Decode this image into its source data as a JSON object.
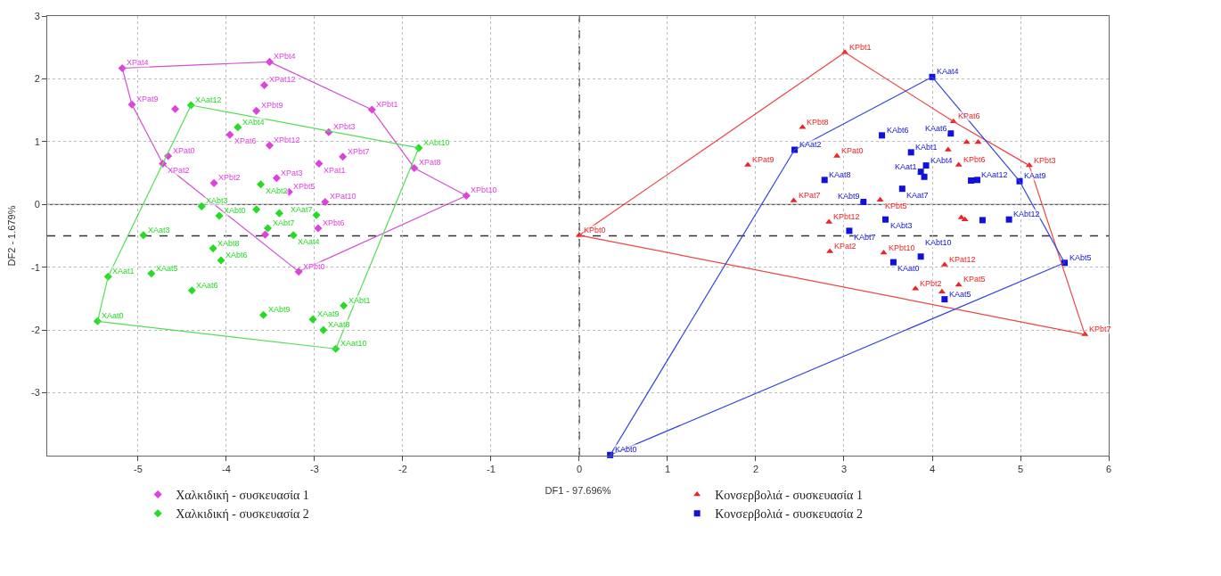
{
  "chart_data": {
    "type": "scatter",
    "xlabel": "DF1 - 97.696%",
    "ylabel": "DF2 - 1.679%",
    "xlim": [
      -6.03,
      6
    ],
    "ylim": [
      -4,
      3
    ],
    "xticks": [
      -5,
      -4,
      -3,
      -2,
      -1,
      0,
      1,
      2,
      3,
      4,
      5,
      6
    ],
    "yticks": [
      -3,
      -2,
      -1,
      0,
      1,
      2,
      3
    ],
    "grid": true,
    "legend": "bottom",
    "ref_lines": [
      {
        "axis": "y",
        "value": 0,
        "line_style": "solid",
        "color": "#555555"
      },
      {
        "axis": "x",
        "value": 0,
        "line_style": "dashed",
        "color": "#333333"
      },
      {
        "axis": "y",
        "value": -0.5,
        "line_style": "dashed",
        "color": "#333333"
      }
    ],
    "series": [
      {
        "name": "Χαλκιδική - συσκευασία 1",
        "color": "#e040e0",
        "marker": "diamond",
        "x": [
          -5.18,
          -5.07,
          -3.51,
          -3.57,
          -3.66,
          -2.35,
          -4.58,
          -3.96,
          -3.51,
          -2.84,
          -4.66,
          -4.72,
          -4.14,
          -3.43,
          -3.29,
          -2.95,
          -2.68,
          -1.87,
          -1.28,
          -2.88,
          -2.96,
          -3.18,
          -3.56
        ],
        "values": [
          2.17,
          1.59,
          2.27,
          1.9,
          1.49,
          1.51,
          1.52,
          1.11,
          0.94,
          1.15,
          0.77,
          0.65,
          0.34,
          0.42,
          0.2,
          0.65,
          0.76,
          0.58,
          0.14,
          0.04,
          -0.38,
          -1.07,
          -0.48
        ]
      },
      {
        "name": "Κονσερβολιά - συσκευασία 1",
        "color": "#ee2222",
        "marker": "triangle",
        "x": [
          3.01,
          2.53,
          2.92,
          1.91,
          2.43,
          0.0,
          2.83,
          2.84,
          3.45,
          4.14,
          3.81,
          4.11,
          4.3,
          5.73,
          5.1,
          4.24,
          4.3,
          3.41,
          4.18,
          4.39,
          4.52,
          4.33,
          4.37
        ],
        "values": [
          2.42,
          1.23,
          0.77,
          0.63,
          0.06,
          -0.49,
          -0.28,
          -0.75,
          -0.77,
          -0.96,
          -1.34,
          -1.39,
          -1.28,
          -2.07,
          0.62,
          1.32,
          0.63,
          0.07,
          0.87,
          0.99,
          0.99,
          -0.21,
          -0.24
        ]
      },
      {
        "name": "Χαλκιδική - συσκευασία 2",
        "color": "#22dd22",
        "marker": "diamond",
        "x": [
          -5.46,
          -5.34,
          -4.94,
          -4.85,
          -4.39,
          -4.15,
          -4.06,
          -3.58,
          -3.02,
          -2.67,
          -2.9,
          -2.76,
          -1.82,
          -4.4,
          -3.87,
          -3.61,
          -4.28,
          -4.08,
          -3.66,
          -3.4,
          -3.53,
          -3.24,
          -2.98
        ],
        "values": [
          -1.86,
          -1.15,
          -0.49,
          -1.1,
          -1.37,
          -0.7,
          -0.89,
          -1.76,
          -1.83,
          -1.61,
          -2.0,
          -2.3,
          0.9,
          1.58,
          1.23,
          0.32,
          -0.03,
          -0.18,
          -0.08,
          -0.14,
          -0.38,
          -0.49,
          -0.17
        ]
      },
      {
        "name": "Κονσερβολιά - συσκευασία 2",
        "color": "#1111dd",
        "marker": "square",
        "x": [
          4.0,
          2.44,
          3.43,
          4.21,
          3.76,
          3.93,
          3.87,
          3.91,
          2.78,
          3.66,
          3.22,
          3.47,
          3.06,
          4.99,
          4.44,
          4.51,
          4.57,
          4.87,
          5.5,
          0.35,
          3.56,
          3.87,
          4.14
        ],
        "values": [
          2.03,
          0.87,
          1.1,
          1.13,
          0.83,
          0.62,
          0.52,
          0.44,
          0.39,
          0.25,
          0.04,
          -0.24,
          -0.42,
          0.37,
          0.38,
          0.39,
          -0.25,
          -0.24,
          -0.93,
          -3.99,
          -0.92,
          -0.83,
          -1.51
        ]
      },
      {
        "type": "line",
        "color": "#d050d0",
        "x": [
          -5.18,
          -3.51
        ],
        "values": [
          2.17,
          2.27
        ]
      },
      {
        "type": "line",
        "color": "#d050d0",
        "x": [
          -3.51,
          -2.35
        ],
        "values": [
          2.27,
          1.51
        ]
      },
      {
        "type": "line",
        "color": "#d050d0",
        "x": [
          -2.35,
          -1.87
        ],
        "values": [
          1.51,
          0.58
        ]
      },
      {
        "type": "line",
        "color": "#d050d0",
        "x": [
          -1.87,
          -1.28
        ],
        "values": [
          0.58,
          0.14
        ]
      },
      {
        "type": "line",
        "color": "#d050d0",
        "x": [
          -3.18,
          -1.28
        ],
        "values": [
          -1.07,
          0.14
        ]
      },
      {
        "type": "line",
        "color": "#d050d0",
        "x": [
          -4.72,
          -3.18
        ],
        "values": [
          0.65,
          -1.07
        ]
      },
      {
        "type": "line",
        "color": "#d050d0",
        "x": [
          -5.07,
          -4.72
        ],
        "values": [
          1.59,
          0.65
        ]
      },
      {
        "type": "line",
        "color": "#d050d0",
        "x": [
          -5.18,
          -5.07
        ],
        "values": [
          2.17,
          1.59
        ]
      },
      {
        "type": "line",
        "color": "#55dd55",
        "x": [
          -5.46,
          -5.34
        ],
        "values": [
          -1.86,
          -1.15
        ]
      },
      {
        "type": "line",
        "color": "#55dd55",
        "x": [
          -5.34,
          -4.4
        ],
        "values": [
          -1.15,
          1.58
        ]
      },
      {
        "type": "line",
        "color": "#55dd55",
        "x": [
          -4.4,
          -1.82
        ],
        "values": [
          1.58,
          0.9
        ]
      },
      {
        "type": "line",
        "color": "#55dd55",
        "x": [
          -2.76,
          -1.82
        ],
        "values": [
          -2.3,
          0.9
        ]
      },
      {
        "type": "line",
        "color": "#55dd55",
        "x": [
          -5.46,
          -2.76
        ],
        "values": [
          -1.86,
          -2.3
        ]
      },
      {
        "type": "line",
        "color": "#ee4444",
        "x": [
          3.01,
          4.24
        ],
        "values": [
          2.42,
          1.32
        ]
      },
      {
        "type": "line",
        "color": "#ee4444",
        "x": [
          4.24,
          5.1
        ],
        "values": [
          1.32,
          0.62
        ]
      },
      {
        "type": "line",
        "color": "#ee4444",
        "x": [
          5.1,
          5.73
        ],
        "values": [
          0.62,
          -2.07
        ]
      },
      {
        "type": "line",
        "color": "#ee4444",
        "x": [
          0.0,
          5.73
        ],
        "values": [
          -0.49,
          -2.07
        ]
      },
      {
        "type": "line",
        "color": "#ee4444",
        "x": [
          0.0,
          3.01
        ],
        "values": [
          -0.49,
          2.42
        ]
      },
      {
        "type": "line",
        "color": "#3344dd",
        "x": [
          4.0,
          4.99
        ],
        "values": [
          2.03,
          0.37
        ]
      },
      {
        "type": "line",
        "color": "#3344dd",
        "x": [
          4.99,
          5.5
        ],
        "values": [
          0.37,
          -0.93
        ]
      },
      {
        "type": "line",
        "color": "#3344dd",
        "x": [
          0.35,
          5.5
        ],
        "values": [
          -3.99,
          -0.93
        ]
      },
      {
        "type": "line",
        "color": "#3344dd",
        "x": [
          0.35,
          2.44
        ],
        "values": [
          -3.99,
          0.87
        ]
      },
      {
        "type": "line",
        "color": "#3344dd",
        "x": [
          2.44,
          4.0
        ],
        "values": [
          0.87,
          2.03
        ]
      }
    ],
    "annotations": [
      {
        "text": "XPat4",
        "x": -5.18,
        "y": 2.17
      },
      {
        "text": "XPat9",
        "x": -5.07,
        "y": 1.59
      },
      {
        "text": "XPbt4",
        "x": -3.51,
        "y": 2.27
      },
      {
        "text": "XPat12",
        "x": -3.57,
        "y": 1.9
      },
      {
        "text": "XPbt9",
        "x": -3.66,
        "y": 1.49
      },
      {
        "text": "XPbt1",
        "x": -2.35,
        "y": 1.51
      },
      {
        "text": "XPat6",
        "x": -3.96,
        "y": 1.11
      },
      {
        "text": "XPbt12",
        "x": -3.51,
        "y": 0.94
      },
      {
        "text": "XPbt3",
        "x": -2.84,
        "y": 1.15
      },
      {
        "text": "XPat0",
        "x": -4.66,
        "y": 0.77
      },
      {
        "text": "XPat2",
        "x": -4.72,
        "y": 0.65
      },
      {
        "text": "XPbt2",
        "x": -4.14,
        "y": 0.34
      },
      {
        "text": "XPat3",
        "x": -3.43,
        "y": 0.42
      },
      {
        "text": "XPbt5",
        "x": -3.29,
        "y": 0.2
      },
      {
        "text": "XPat1",
        "x": -2.95,
        "y": 0.65
      },
      {
        "text": "XPbt7",
        "x": -2.68,
        "y": 0.76
      },
      {
        "text": "XPat8",
        "x": -1.87,
        "y": 0.58
      },
      {
        "text": "XPbt10",
        "x": -1.28,
        "y": 0.14
      },
      {
        "text": "XPat10",
        "x": -2.88,
        "y": 0.04
      },
      {
        "text": "XPbt6",
        "x": -2.96,
        "y": -0.38
      },
      {
        "text": "XPbt0",
        "x": -3.18,
        "y": -1.07
      },
      {
        "text": "XAat0",
        "x": -5.46,
        "y": -1.86
      },
      {
        "text": "XAat1",
        "x": -5.34,
        "y": -1.15
      },
      {
        "text": "XAat3",
        "x": -4.94,
        "y": -0.49
      },
      {
        "text": "XAat5",
        "x": -4.85,
        "y": -1.1
      },
      {
        "text": "XAat6",
        "x": -4.39,
        "y": -1.37
      },
      {
        "text": "XAbt8",
        "x": -4.15,
        "y": -0.7
      },
      {
        "text": "XAbt6",
        "x": -4.06,
        "y": -0.89
      },
      {
        "text": "XAbt9",
        "x": -3.58,
        "y": -1.76
      },
      {
        "text": "XAat9",
        "x": -3.02,
        "y": -1.83
      },
      {
        "text": "XAbt1",
        "x": -2.67,
        "y": -1.61
      },
      {
        "text": "XAat8",
        "x": -2.9,
        "y": -2.0
      },
      {
        "text": "XAat10",
        "x": -2.76,
        "y": -2.3
      },
      {
        "text": "XAbt10",
        "x": -1.82,
        "y": 0.9
      },
      {
        "text": "XAat12",
        "x": -4.4,
        "y": 1.58
      },
      {
        "text": "XAbt4",
        "x": -3.87,
        "y": 1.23
      },
      {
        "text": "XAbt2",
        "x": -3.61,
        "y": 0.32
      },
      {
        "text": "XAbt3",
        "x": -4.28,
        "y": -0.03
      },
      {
        "text": "XAbt0",
        "x": -4.08,
        "y": -0.18
      },
      {
        "text": "XAbt7",
        "x": -3.53,
        "y": -0.38
      },
      {
        "text": "XAat4",
        "x": -3.24,
        "y": -0.49
      },
      {
        "text": "XAat7",
        "x": -2.98,
        "y": -0.17
      },
      {
        "text": "KPbt1",
        "x": 3.01,
        "y": 2.42
      },
      {
        "text": "KPbt8",
        "x": 2.53,
        "y": 1.23
      },
      {
        "text": "KPat0",
        "x": 2.92,
        "y": 0.77
      },
      {
        "text": "KPat9",
        "x": 1.91,
        "y": 0.63
      },
      {
        "text": "KPat7",
        "x": 2.43,
        "y": 0.06
      },
      {
        "text": "KPbt0",
        "x": 0.0,
        "y": -0.49
      },
      {
        "text": "KPbt12",
        "x": 2.83,
        "y": -0.28
      },
      {
        "text": "KPat2",
        "x": 2.84,
        "y": -0.75
      },
      {
        "text": "KPbt10",
        "x": 3.45,
        "y": -0.77
      },
      {
        "text": "KPat12",
        "x": 4.14,
        "y": -0.96
      },
      {
        "text": "KPbt2",
        "x": 3.81,
        "y": -1.34
      },
      {
        "text": "KPat5",
        "x": 4.3,
        "y": -1.28
      },
      {
        "text": "KPbt7",
        "x": 5.73,
        "y": -2.07
      },
      {
        "text": "KPbt3",
        "x": 5.1,
        "y": 0.62
      },
      {
        "text": "KPat6",
        "x": 4.24,
        "y": 1.32
      },
      {
        "text": "KPbt6",
        "x": 4.3,
        "y": 0.63
      },
      {
        "text": "KPbt5",
        "x": 3.41,
        "y": 0.07
      },
      {
        "text": "KAat4",
        "x": 4.0,
        "y": 2.03
      },
      {
        "text": "KAat2",
        "x": 2.44,
        "y": 0.87
      },
      {
        "text": "KAbt6",
        "x": 3.43,
        "y": 1.1
      },
      {
        "text": "KAat6",
        "x": 4.21,
        "y": 1.13
      },
      {
        "text": "KAbt1",
        "x": 3.76,
        "y": 0.83
      },
      {
        "text": "KAbt4",
        "x": 3.93,
        "y": 0.62
      },
      {
        "text": "KAat1",
        "x": 3.87,
        "y": 0.52
      },
      {
        "text": "KAat8",
        "x": 2.78,
        "y": 0.39
      },
      {
        "text": "KAat7",
        "x": 3.66,
        "y": 0.25
      },
      {
        "text": "KAbt9",
        "x": 3.22,
        "y": 0.04
      },
      {
        "text": "KAbt3",
        "x": 3.47,
        "y": -0.24
      },
      {
        "text": "KAbt7",
        "x": 3.06,
        "y": -0.42
      },
      {
        "text": "KAat9",
        "x": 4.99,
        "y": 0.37
      },
      {
        "text": "KAat12",
        "x": 4.51,
        "y": 0.39
      },
      {
        "text": "KAbt12",
        "x": 4.87,
        "y": -0.24
      },
      {
        "text": "KAbt5",
        "x": 5.5,
        "y": -0.93
      },
      {
        "text": "KAbt0",
        "x": 0.35,
        "y": -3.99
      },
      {
        "text": "KAat0",
        "x": 3.56,
        "y": -0.92
      },
      {
        "text": "KAbt10",
        "x": 3.87,
        "y": -0.83
      },
      {
        "text": "KAat5",
        "x": 4.14,
        "y": -1.51
      }
    ]
  }
}
